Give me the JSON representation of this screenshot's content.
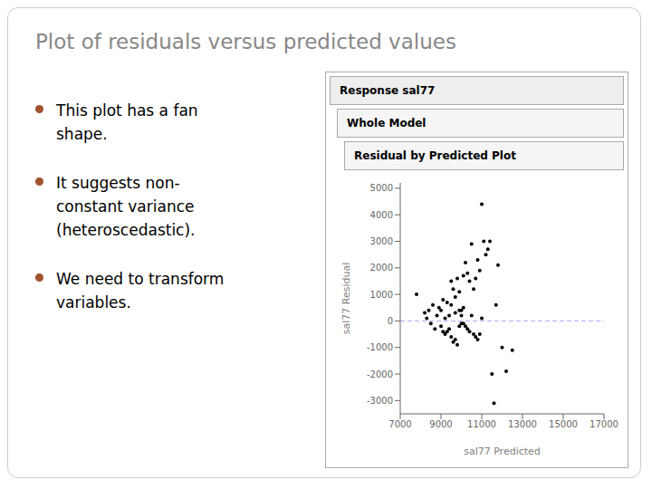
{
  "chart_data": {
    "type": "scatter",
    "title": "Plot of residuals versus predicted values",
    "annotations": [
      "Response sal77",
      "Whole Model",
      "Residual by Predicted Plot"
    ],
    "bullets": [
      "This plot has a fan\nshape.",
      "It suggests non-\nconstant variance\n(heteroscedastic).",
      "We need to transform\nvariables."
    ],
    "xlabel": "sal77 Predicted",
    "ylabel": "sal77 Residual",
    "xlim": [
      7000,
      17000
    ],
    "ylim": [
      -3500,
      5200
    ],
    "xticks": [
      7000,
      9000,
      11000,
      13000,
      15000,
      17000
    ],
    "yticks": [
      -3000,
      -2000,
      -1000,
      0,
      1000,
      2000,
      3000,
      4000,
      5000
    ],
    "grid": false,
    "color": "#000000",
    "hline": {
      "y": 0,
      "color": "#AAAAEE",
      "line_style": "dashed"
    },
    "x": [
      7800,
      8200,
      8300,
      8400,
      8500,
      8600,
      8700,
      8800,
      8900,
      9000,
      9000,
      9100,
      9100,
      9200,
      9200,
      9300,
      9300,
      9400,
      9400,
      9500,
      9500,
      9500,
      9600,
      9600,
      9700,
      9700,
      9700,
      9800,
      9800,
      9900,
      9900,
      9900,
      10000,
      10000,
      10000,
      10100,
      10100,
      10100,
      10200,
      10200,
      10300,
      10300,
      10400,
      10400,
      10500,
      10500,
      10600,
      10600,
      10700,
      10700,
      10800,
      10800,
      10900,
      10900,
      11000,
      11000,
      11100,
      11200,
      11300,
      11400,
      11500,
      11600,
      11700,
      11800,
      12000,
      12200,
      12500
    ],
    "values": [
      1000,
      300,
      100,
      400,
      -100,
      600,
      -300,
      200,
      500,
      400,
      -200,
      800,
      -400,
      100,
      -500,
      700,
      -400,
      200,
      -300,
      1500,
      600,
      -600,
      1200,
      -800,
      900,
      -700,
      300,
      1600,
      -900,
      1100,
      -200,
      400,
      400,
      200,
      -100,
      1700,
      500,
      -100,
      2200,
      -200,
      1800,
      -300,
      1500,
      -400,
      2900,
      200,
      1200,
      -500,
      1600,
      -600,
      2300,
      -700,
      1900,
      -500,
      4400,
      100,
      3000,
      2500,
      2700,
      3000,
      -2000,
      -3100,
      600,
      2100,
      -1000,
      -1900,
      -1100
    ]
  }
}
